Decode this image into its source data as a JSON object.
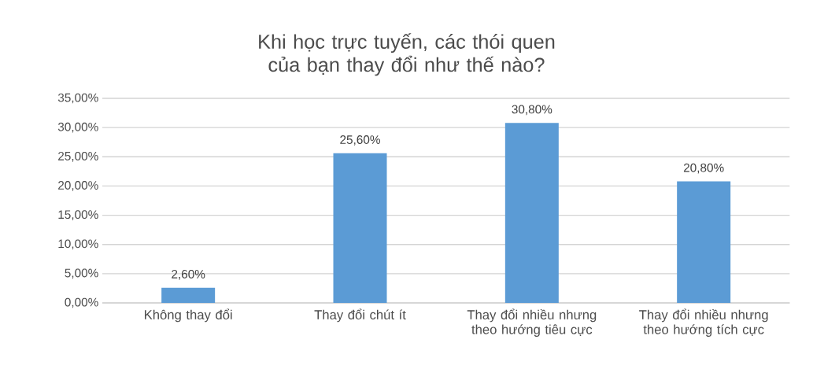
{
  "chart_data": {
    "type": "bar",
    "title": "Khi học trực tuyến, các thói quen của bạn thay đổi như thế nào?",
    "categories": [
      "Không thay đổi",
      "Thay đổi chút ít",
      "Thay đổi nhiều nhưng theo hướng tiêu cực",
      "Thay đổi nhiều nhưng theo hướng tích cực"
    ],
    "values": [
      2.6,
      25.6,
      30.8,
      20.8
    ],
    "value_labels": [
      "2,60%",
      "25,60%",
      "30,80%",
      "20,80%"
    ],
    "color": "#5b9bd5",
    "ylim": [
      0,
      35
    ],
    "yticks": [
      {
        "value": 0,
        "label": "0,00%"
      },
      {
        "value": 5,
        "label": "5,00%"
      },
      {
        "value": 10,
        "label": "10,00%"
      },
      {
        "value": 15,
        "label": "15,00%"
      },
      {
        "value": 20,
        "label": "20,00%"
      },
      {
        "value": 25,
        "label": "25,00%"
      },
      {
        "value": 30,
        "label": "30,00%"
      },
      {
        "value": 35,
        "label": "35,00%"
      }
    ],
    "grid": "y"
  }
}
